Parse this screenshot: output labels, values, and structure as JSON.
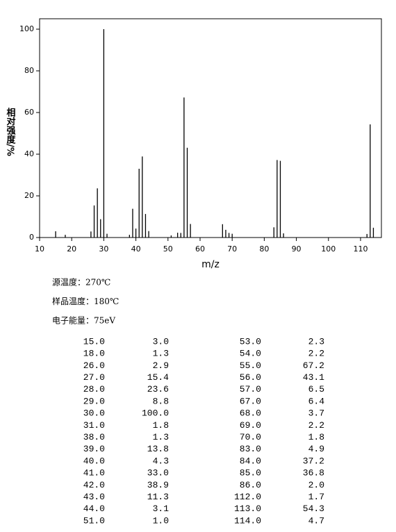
{
  "chart_data": {
    "type": "stem",
    "x_label": "m/z",
    "y_label": "相对强度/%",
    "x": [
      15,
      18,
      26,
      27,
      28,
      29,
      30,
      31,
      38,
      39,
      40,
      41,
      42,
      43,
      44,
      51,
      53,
      54,
      55,
      56,
      57,
      67,
      68,
      69,
      70,
      83,
      84,
      85,
      86,
      112,
      113,
      114
    ],
    "values": [
      3.0,
      1.3,
      2.9,
      15.4,
      23.6,
      8.8,
      100,
      1.8,
      1.3,
      13.8,
      4.3,
      33.0,
      38.9,
      11.3,
      3.1,
      1.0,
      2.3,
      2.2,
      67.2,
      43.1,
      6.5,
      6.4,
      3.7,
      2.2,
      1.8,
      4.9,
      37.2,
      36.8,
      2.0,
      1.7,
      54.3,
      4.7
    ],
    "color": "#000000",
    "xlim": [
      10,
      116.5
    ],
    "xticks": [
      10,
      20,
      30,
      40,
      50,
      60,
      70,
      80,
      90,
      100,
      110
    ],
    "ylim": [
      0,
      105
    ],
    "yticks": [
      0,
      20,
      40,
      60,
      80,
      100
    ]
  },
  "info": [
    "源温度：270℃",
    "样品温度：180℃",
    "电子能量：75eV"
  ],
  "table": {
    "rows": [
      [
        "15.0",
        "3.0",
        "53.0",
        "2.3"
      ],
      [
        "18.0",
        "1.3",
        "54.0",
        "2.2"
      ],
      [
        "26.0",
        "2.9",
        "55.0",
        "67.2"
      ],
      [
        "27.0",
        "15.4",
        "56.0",
        "43.1"
      ],
      [
        "28.0",
        "23.6",
        "57.0",
        "6.5"
      ],
      [
        "29.0",
        "8.8",
        "67.0",
        "6.4"
      ],
      [
        "30.0",
        "100.0",
        "68.0",
        "3.7"
      ],
      [
        "31.0",
        "1.8",
        "69.0",
        "2.2"
      ],
      [
        "38.0",
        "1.3",
        "70.0",
        "1.8"
      ],
      [
        "39.0",
        "13.8",
        "83.0",
        "4.9"
      ],
      [
        "40.0",
        "4.3",
        "84.0",
        "37.2"
      ],
      [
        "41.0",
        "33.0",
        "85.0",
        "36.8"
      ],
      [
        "42.0",
        "38.9",
        "86.0",
        "2.0"
      ],
      [
        "43.0",
        "11.3",
        "112.0",
        "1.7"
      ],
      [
        "44.0",
        "3.1",
        "113.0",
        "54.3"
      ],
      [
        "51.0",
        "1.0",
        "114.0",
        "4.7"
      ]
    ]
  }
}
